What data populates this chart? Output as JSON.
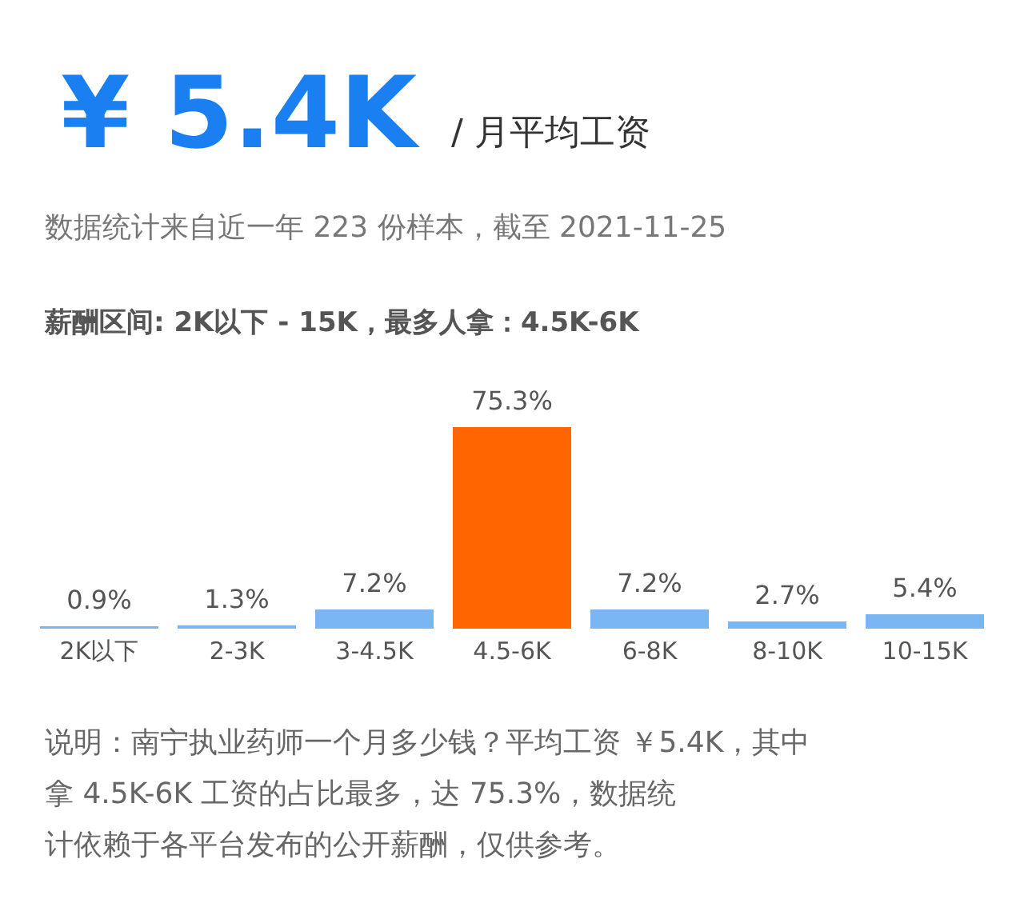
{
  "chart_data": {
    "type": "bar",
    "title": "¥ 5.4K",
    "subtitle": "数据统计来自近一年 223 份样本，截至 2021-11-25",
    "annotations": [
      "/ 月平均工资",
      "薪酬区间: 2K以下 - 15K，最多人拿：4.5K-6K",
      "说明：南宁执业药师一个月多少钱？平均工资 ￥5.4K，其中拿 4.5K-6K 工资的占比最多，达 75.3%，数据统计依赖于各平台发布的公开薪酬，仅供参考。"
    ],
    "categories": [
      "2K以下",
      "2-3K",
      "3-4.5K",
      "4.5-6K",
      "6-8K",
      "8-10K",
      "10-15K"
    ],
    "values": [
      0.9,
      1.3,
      7.2,
      75.3,
      7.2,
      2.7,
      5.4
    ],
    "value_labels": [
      "0.9%",
      "1.3%",
      "7.2%",
      "75.3%",
      "7.2%",
      "2.7%",
      "5.4%"
    ],
    "colors": [
      "#7ab6f2",
      "#7ab6f2",
      "#7ab6f2",
      "#ff6600",
      "#7ab6f2",
      "#7ab6f2",
      "#7ab6f2"
    ]
  }
}
